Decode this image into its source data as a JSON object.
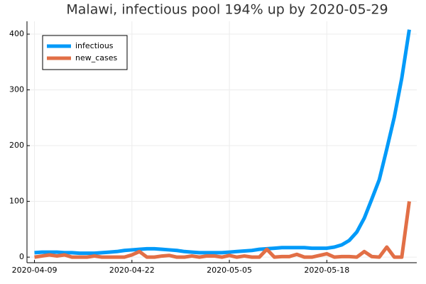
{
  "chart_data": {
    "type": "line",
    "title": "Malawi, infectious pool 194% up by 2020-05-29",
    "x": [
      "2020-04-09",
      "2020-04-10",
      "2020-04-11",
      "2020-04-12",
      "2020-04-13",
      "2020-04-14",
      "2020-04-15",
      "2020-04-16",
      "2020-04-17",
      "2020-04-18",
      "2020-04-19",
      "2020-04-20",
      "2020-04-21",
      "2020-04-22",
      "2020-04-23",
      "2020-04-24",
      "2020-04-25",
      "2020-04-26",
      "2020-04-27",
      "2020-04-28",
      "2020-04-29",
      "2020-04-30",
      "2020-05-01",
      "2020-05-02",
      "2020-05-03",
      "2020-05-04",
      "2020-05-05",
      "2020-05-06",
      "2020-05-07",
      "2020-05-08",
      "2020-05-09",
      "2020-05-10",
      "2020-05-11",
      "2020-05-12",
      "2020-05-13",
      "2020-05-14",
      "2020-05-15",
      "2020-05-16",
      "2020-05-17",
      "2020-05-18",
      "2020-05-19",
      "2020-05-20",
      "2020-05-21",
      "2020-05-22",
      "2020-05-23",
      "2020-05-24",
      "2020-05-25",
      "2020-05-26",
      "2020-05-27",
      "2020-05-28",
      "2020-05-29"
    ],
    "series": [
      {
        "name": "infectious",
        "color": "#009af9",
        "values": [
          8,
          9,
          9,
          9,
          8,
          8,
          7,
          7,
          7,
          8,
          9,
          10,
          12,
          13,
          14,
          15,
          15,
          14,
          13,
          12,
          10,
          9,
          8,
          8,
          8,
          8,
          9,
          10,
          11,
          12,
          14,
          15,
          16,
          17,
          17,
          17,
          17,
          16,
          16,
          16,
          18,
          22,
          30,
          45,
          70,
          104,
          139,
          194,
          251,
          321,
          408
        ]
      },
      {
        "name": "new_cases",
        "color": "#e26f46",
        "values": [
          0,
          2,
          4,
          2,
          4,
          0,
          0,
          0,
          2,
          0,
          0,
          0,
          0,
          4,
          10,
          0,
          0,
          2,
          3,
          0,
          0,
          2,
          0,
          2,
          2,
          0,
          3,
          0,
          2,
          0,
          0,
          14,
          0,
          1,
          1,
          5,
          0,
          0,
          3,
          6,
          0,
          1,
          1,
          0,
          10,
          1,
          0,
          18,
          0,
          0,
          100
        ]
      }
    ],
    "xlim": [
      "2020-04-08",
      "2020-05-30"
    ],
    "xticks": [
      "2020-04-09",
      "2020-04-22",
      "2020-05-05",
      "2020-05-18"
    ],
    "ylim": [
      -10,
      423
    ],
    "yticks": [
      0,
      100,
      200,
      300,
      400
    ],
    "grid": true,
    "legend": "top-left"
  }
}
